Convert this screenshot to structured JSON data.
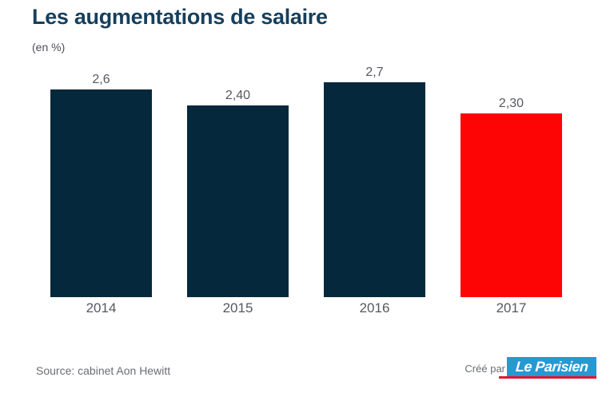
{
  "title": "Les augmentations de salaire",
  "subtitle": "(en %)",
  "footer": {
    "source": "Source: cabinet Aon Hewitt",
    "credit_prefix": "Créé par",
    "logo_text": "Le Parisien"
  },
  "colors": {
    "title_navy": "#163f5c",
    "bar_navy": "#06283c",
    "bar_red": "#fe0505",
    "label_gray": "#55595e",
    "logo_blue": "#2798d2",
    "logo_red": "#e8112d"
  },
  "chart_data": {
    "type": "bar",
    "categories": [
      "2014",
      "2015",
      "2016",
      "2017"
    ],
    "values": [
      2.6,
      2.4,
      2.7,
      2.3
    ],
    "value_labels": [
      "2,6",
      "2,40",
      "2,7",
      "2,30"
    ],
    "bar_colors": [
      "#06283c",
      "#06283c",
      "#06283c",
      "#fe0505"
    ],
    "title": "Les augmentations de salaire",
    "xlabel": "",
    "ylabel": "(en %)",
    "ylim": [
      0,
      2.9
    ],
    "grid": false,
    "legend": false
  }
}
